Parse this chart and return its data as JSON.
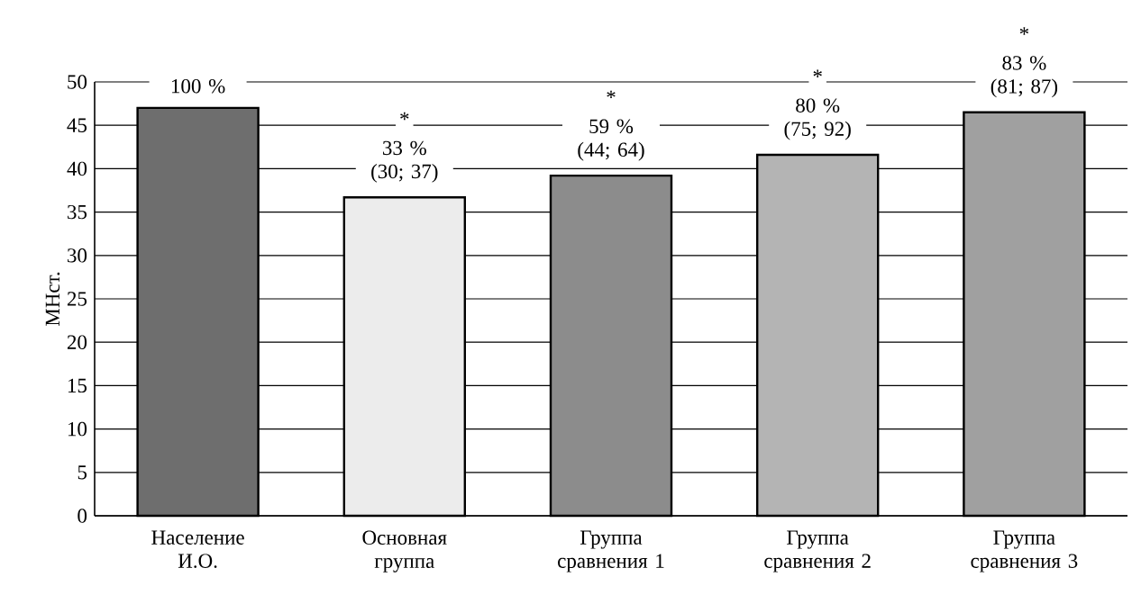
{
  "chart_data": {
    "type": "bar",
    "ylabel": "МНст.",
    "categories": [
      "Население И.О.",
      "Основная группа",
      "Группа сравнения 1",
      "Группа сравнения 2",
      "Группа сравнения 3"
    ],
    "values": [
      47.0,
      36.7,
      39.2,
      41.6,
      46.5
    ],
    "colors": [
      "#6e6e6e",
      "#ececec",
      "#8c8c8c",
      "#b4b4b4",
      "#a0a0a0"
    ],
    "annotations": [
      {
        "text": "100 %",
        "x": "Население И.О.",
        "y": 47.0
      },
      {
        "text": "33 % (30; 37)",
        "x": "Основная группа",
        "y": 36.7
      },
      {
        "text": "59 % (44; 64)",
        "x": "Группа сравнения 1",
        "y": 39.2
      },
      {
        "text": "80 % (75; 92)",
        "x": "Группа сравнения 2",
        "y": 41.6
      },
      {
        "text": "83 % (81; 87)",
        "x": "Группа сравнения 3",
        "y": 46.5
      },
      "*",
      "*",
      "*",
      "*"
    ],
    "ylim": [
      0,
      50
    ],
    "yticks": [
      0,
      5,
      10,
      15,
      20,
      25,
      30,
      35,
      40,
      45,
      50
    ],
    "grid": "y"
  }
}
